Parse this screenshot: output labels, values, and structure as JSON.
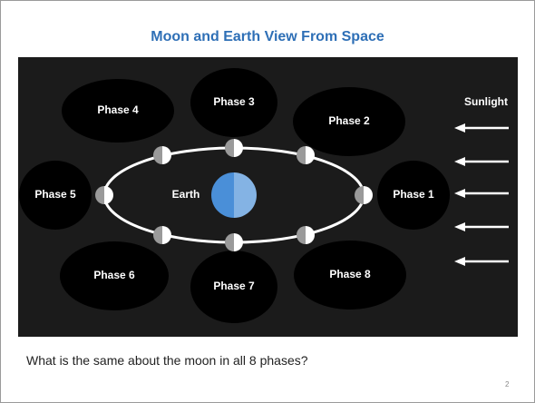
{
  "title": "Moon and Earth View From Space",
  "diagram": {
    "sunlight_label": "Sunlight",
    "earth_label": "Earth",
    "phases": [
      "Phase 1",
      "Phase 2",
      "Phase 3",
      "Phase 4",
      "Phase 5",
      "Phase 6",
      "Phase 7",
      "Phase 8"
    ]
  },
  "question": "What is the same about the moon in all 8 phases?",
  "page_number": 2
}
